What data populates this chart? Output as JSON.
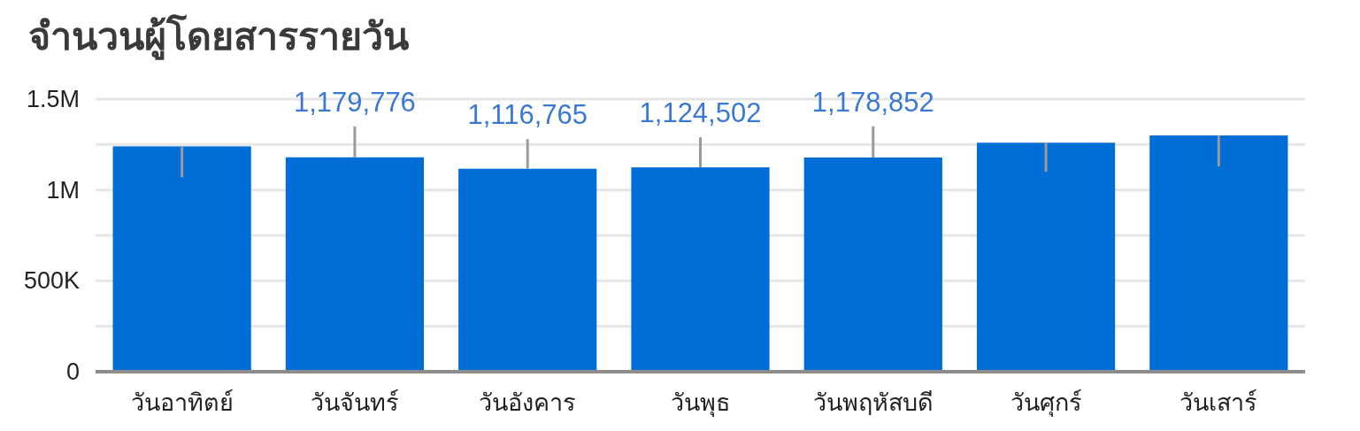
{
  "chart_data": {
    "type": "bar",
    "title": "จำนวนผู้โดยสารรายวัน",
    "categories": [
      "วันอาทิตย์",
      "วันจันทร์",
      "วันอังคาร",
      "วันพุธ",
      "วันพฤหัสบดี",
      "วันศุกร์",
      "วันเสาร์"
    ],
    "values": [
      1240000,
      1179776,
      1116765,
      1124502,
      1178852,
      1260000,
      1300000
    ],
    "color": "#006ed6",
    "errors": [
      [
        1070000,
        1240000
      ],
      [
        1179776,
        1350000
      ],
      [
        1116765,
        1280000
      ],
      [
        1124502,
        1290000
      ],
      [
        1178852,
        1350000
      ],
      [
        1100000,
        1260000
      ],
      [
        1130000,
        1300000
      ]
    ],
    "value_labels": [
      null,
      "1,179,776",
      "1,116,765",
      "1,124,502",
      "1,178,852",
      null,
      null
    ],
    "ylim": [
      0,
      1500000
    ],
    "yticks": [
      0,
      {
        "value": 250000,
        "label": null
      },
      {
        "value": 500000,
        "label": "500K"
      },
      {
        "value": 750000,
        "label": null
      },
      {
        "value": 1000000,
        "label": "1M"
      },
      {
        "value": 1250000,
        "label": null
      },
      {
        "value": 1500000,
        "label": "1.5M"
      }
    ],
    "grid": "y"
  }
}
